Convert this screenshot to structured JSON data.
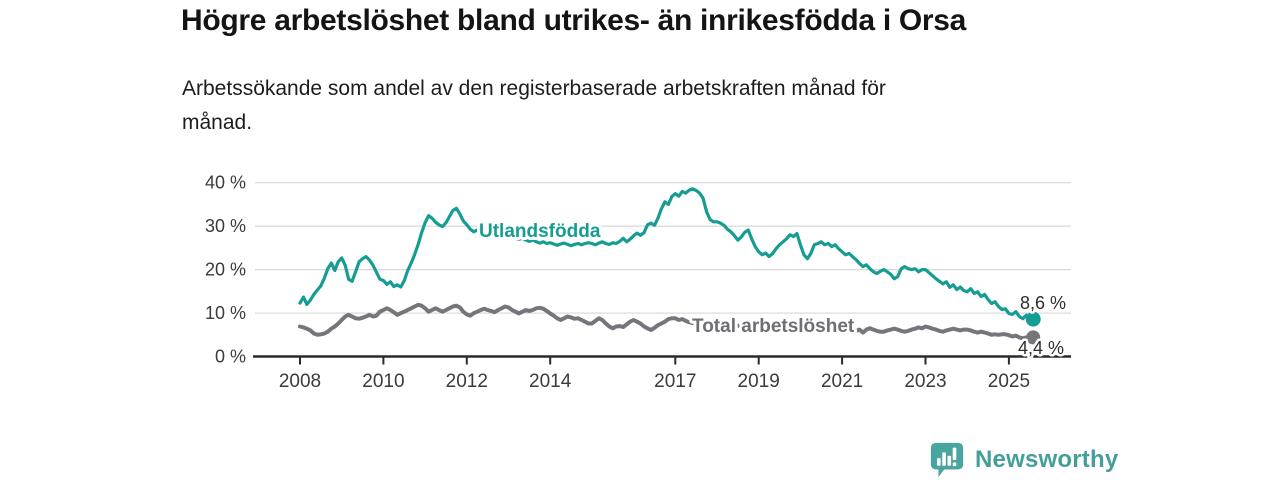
{
  "header": {
    "title": "Högre arbetslöshet bland utrikes- än inrikesfödda i Orsa",
    "subtitle_lines": [
      "Arbetssökande som andel av den registerbaserade arbetskraften månad för",
      "månad."
    ]
  },
  "footer": {
    "brand": "Newsworthy",
    "brand_color": "#459e9a",
    "logo_icon": "newsworthy-chart-bubble-icon"
  },
  "chart_data": {
    "type": "line",
    "x_start_year": 2008,
    "points_per_year": 12,
    "x_range": [
      2008.0,
      2025.67
    ],
    "ylim": [
      0,
      40
    ],
    "grid": "horizontal",
    "style": {
      "grid_color": "#d8d8d8",
      "axis_color": "#2a2a2a",
      "tick_label_color": "#3b3b3b",
      "end_label_color": "#2e2e2e",
      "background": "#ffffff"
    },
    "y_ticks": [
      {
        "value": 0,
        "label": "0 %"
      },
      {
        "value": 10,
        "label": "10 %"
      },
      {
        "value": 20,
        "label": "20 %"
      },
      {
        "value": 30,
        "label": "30 %"
      },
      {
        "value": 40,
        "label": "40 %"
      }
    ],
    "x_ticks": [
      {
        "year": 2008,
        "label": "2008"
      },
      {
        "year": 2010,
        "label": "2010"
      },
      {
        "year": 2012,
        "label": "2012"
      },
      {
        "year": 2014,
        "label": "2014"
      },
      {
        "year": 2017,
        "label": "2017"
      },
      {
        "year": 2019,
        "label": "2019"
      },
      {
        "year": 2021,
        "label": "2021"
      },
      {
        "year": 2023,
        "label": "2023"
      },
      {
        "year": 2025,
        "label": "2025"
      }
    ],
    "series": [
      {
        "name": "Utlandsfödda",
        "color": "#169d93",
        "label_color": "#169d93",
        "end_value": 8.6,
        "end_label": "8,6 %",
        "values": [
          12.3,
          13.7,
          12.0,
          13.0,
          14.3,
          15.3,
          16.3,
          18.0,
          20.2,
          21.5,
          19.8,
          21.8,
          22.7,
          21.0,
          17.8,
          17.3,
          19.5,
          21.8,
          22.5,
          23.0,
          22.2,
          21.0,
          19.4,
          17.8,
          17.5,
          16.6,
          17.2,
          16.1,
          16.5,
          16.0,
          17.5,
          19.8,
          21.5,
          23.5,
          25.8,
          28.5,
          30.8,
          32.4,
          31.8,
          30.9,
          30.3,
          29.9,
          30.8,
          32.2,
          33.6,
          34.1,
          32.8,
          31.2,
          30.3,
          29.3,
          28.7,
          29.1,
          28.4,
          29.0,
          28.8,
          28.5,
          28.9,
          28.4,
          28.1,
          27.8,
          27.6,
          27.9,
          27.3,
          27.0,
          27.2,
          26.8,
          26.5,
          26.8,
          26.4,
          26.1,
          26.4,
          26.0,
          26.2,
          25.9,
          25.6,
          25.9,
          26.1,
          25.8,
          25.5,
          25.8,
          26.0,
          25.7,
          26.0,
          26.2,
          26.0,
          25.7,
          26.1,
          26.4,
          26.0,
          25.8,
          26.2,
          26.0,
          26.5,
          27.2,
          26.4,
          27.0,
          27.8,
          28.4,
          27.9,
          28.5,
          30.3,
          30.7,
          30.2,
          31.8,
          34.0,
          35.6,
          35.0,
          36.8,
          37.5,
          36.9,
          38.0,
          37.6,
          38.3,
          38.6,
          38.2,
          37.6,
          36.4,
          33.3,
          31.5,
          31.0,
          31.0,
          30.7,
          30.2,
          29.3,
          28.7,
          27.8,
          26.8,
          27.5,
          28.6,
          29.1,
          27.0,
          25.3,
          24.1,
          23.4,
          23.8,
          23.0,
          23.7,
          24.8,
          25.7,
          26.4,
          27.1,
          28.0,
          27.6,
          28.3,
          25.7,
          23.4,
          22.5,
          23.7,
          25.7,
          26.0,
          26.4,
          25.7,
          26.0,
          25.3,
          25.7,
          24.8,
          24.1,
          23.4,
          23.7,
          23.0,
          22.3,
          21.4,
          20.7,
          21.1,
          20.2,
          19.5,
          19.1,
          19.6,
          20.0,
          19.5,
          18.9,
          17.9,
          18.4,
          20.2,
          20.7,
          20.2,
          20.0,
          20.2,
          19.5,
          20.0,
          20.0,
          19.3,
          18.6,
          17.9,
          17.3,
          16.7,
          17.2,
          15.9,
          16.5,
          15.4,
          16.0,
          15.2,
          14.9,
          15.6,
          14.5,
          14.9,
          13.8,
          14.3,
          13.1,
          12.2,
          12.6,
          11.5,
          10.8,
          11.0,
          9.9,
          9.7,
          10.3,
          9.2,
          8.7,
          9.5,
          8.0,
          8.6
        ]
      },
      {
        "name": "Total arbetslöshet",
        "color": "#75757b",
        "label_color": "#6e6f75",
        "end_value": 4.4,
        "end_label": "4,4 %",
        "values": [
          6.9,
          6.7,
          6.4,
          6.0,
          5.3,
          5.0,
          5.1,
          5.3,
          5.7,
          6.4,
          6.9,
          7.6,
          8.4,
          9.2,
          9.6,
          9.2,
          8.8,
          8.7,
          8.9,
          9.2,
          9.6,
          9.2,
          9.4,
          10.3,
          10.7,
          11.1,
          10.7,
          10.2,
          9.6,
          10.0,
          10.3,
          10.7,
          11.1,
          11.5,
          11.9,
          11.7,
          11.1,
          10.3,
          10.7,
          11.1,
          10.7,
          10.3,
          10.7,
          11.1,
          11.5,
          11.7,
          11.3,
          10.3,
          9.7,
          9.4,
          10.0,
          10.3,
          10.7,
          11.0,
          10.7,
          10.5,
          10.2,
          10.7,
          11.1,
          11.5,
          11.3,
          10.7,
          10.3,
          9.9,
          10.3,
          10.7,
          10.5,
          10.7,
          11.1,
          11.2,
          11.0,
          10.5,
          9.9,
          9.4,
          8.8,
          8.4,
          8.8,
          9.2,
          9.0,
          8.7,
          8.8,
          8.4,
          8.0,
          7.6,
          7.6,
          8.2,
          8.8,
          8.4,
          7.6,
          6.9,
          6.5,
          6.9,
          7.0,
          6.8,
          7.4,
          8.0,
          8.4,
          8.0,
          7.6,
          6.9,
          6.5,
          6.1,
          6.6,
          7.2,
          7.6,
          8.0,
          8.6,
          8.8,
          8.8,
          8.4,
          8.6,
          8.2,
          7.9,
          7.7,
          8.0,
          8.2,
          7.9,
          7.6,
          7.4,
          7.6,
          7.8,
          7.5,
          7.3,
          7.0,
          7.2,
          7.4,
          7.1,
          6.9,
          7.1,
          7.3,
          7.0,
          6.8,
          6.6,
          6.4,
          6.6,
          6.8,
          6.6,
          6.4,
          6.6,
          6.8,
          7.0,
          6.8,
          6.6,
          6.8,
          7.0,
          6.8,
          7.2,
          7.8,
          8.0,
          7.8,
          7.6,
          7.4,
          7.2,
          7.0,
          6.8,
          6.6,
          6.4,
          6.2,
          6.3,
          6.2,
          5.9,
          6.2,
          5.5,
          6.2,
          6.5,
          6.2,
          5.9,
          5.7,
          5.7,
          6.0,
          6.2,
          6.4,
          6.2,
          5.9,
          5.7,
          5.9,
          6.2,
          6.4,
          6.7,
          6.5,
          6.9,
          6.7,
          6.4,
          6.2,
          5.9,
          5.7,
          6.0,
          6.2,
          6.4,
          6.2,
          6.0,
          6.2,
          6.2,
          6.0,
          5.7,
          5.5,
          5.7,
          5.5,
          5.3,
          5.0,
          5.1,
          5.0,
          5.1,
          5.1,
          4.9,
          4.6,
          4.8,
          4.4,
          4.2,
          4.4,
          4.1,
          4.4
        ]
      }
    ]
  }
}
